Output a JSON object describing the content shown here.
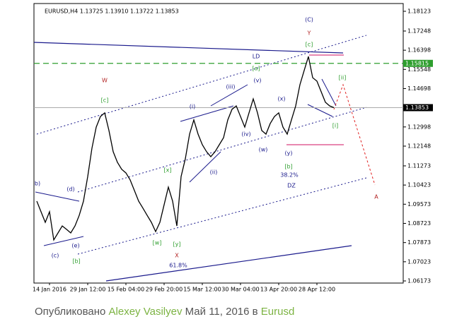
{
  "chart_data": {
    "type": "line",
    "title": "EURUSD,H4  1.13725 1.13910 1.13722 1.13853",
    "categories": [
      null,
      null,
      null,
      "14 Jan 2016",
      null,
      null,
      null,
      null,
      null,
      null,
      null,
      null,
      "29 Jan 12:00",
      null,
      null,
      null,
      null,
      null,
      null,
      null,
      null,
      "15 Feb 04:00",
      null,
      null,
      null,
      null,
      null,
      null,
      null,
      null,
      "29 Feb 20:00",
      null,
      null,
      null,
      null,
      null,
      null,
      null,
      null,
      "15 Mar 12:00",
      null,
      null,
      null,
      null,
      null,
      null,
      null,
      null,
      "30 Mar 04:00",
      null,
      null,
      null,
      null,
      null,
      null,
      null,
      null,
      "13 Apr 20:00",
      null,
      null,
      null,
      null,
      null,
      null,
      null,
      null,
      "28 Apr 12:00",
      null,
      null,
      null,
      null
    ],
    "series": [
      {
        "name": "EURUSD,H4",
        "color": "#000000",
        "values": [
          1.0971,
          1.0924,
          1.0877,
          1.0924,
          1.0799,
          1.083,
          1.0861,
          1.0846,
          1.083,
          1.0861,
          1.0908,
          1.0971,
          1.108,
          1.1206,
          1.1299,
          1.1346,
          1.1362,
          1.1284,
          1.119,
          1.1143,
          1.1112,
          1.1096,
          1.1065,
          1.1018,
          1.0971,
          1.094,
          1.0908,
          1.0877,
          1.0836,
          1.0877,
          1.0955,
          1.1033,
          1.0971,
          1.0861,
          1.108,
          1.1159,
          1.1268,
          1.1331,
          1.1268,
          1.1221,
          1.119,
          1.1168,
          1.119,
          1.1221,
          1.1252,
          1.1331,
          1.1378,
          1.1393,
          1.1346,
          1.1299,
          1.1362,
          1.1424,
          1.1362,
          1.1284,
          1.1268,
          1.1315,
          1.1346,
          1.1362,
          1.1299,
          1.1268,
          1.1331,
          1.1393,
          1.1487,
          1.155,
          1.1612,
          1.1518,
          1.1503,
          1.1456,
          1.1409,
          1.1393,
          1.13853
        ]
      }
    ],
    "ylim": [
      1.06079,
      1.18467
    ],
    "yticks": [
      1.18123,
      1.17248,
      1.16398,
      1.15548,
      1.14698,
      1.12998,
      1.12148,
      1.11273,
      1.10423,
      1.09573,
      1.08723,
      1.07873,
      1.07023,
      1.06173
    ],
    "current_price": 1.13853,
    "level": {
      "value": 1.15815,
      "color": "#2e9e2e"
    },
    "annotations": [
      {
        "text": "(C)",
        "color": "#1a1a8c"
      },
      {
        "text": "Y",
        "color": "#b22222"
      },
      {
        "text": "[c]",
        "color": "#2e9e2e"
      },
      {
        "text": "LD",
        "color": "#1a1a8c"
      },
      {
        "text": "[a]",
        "color": "#2e9e2e"
      },
      {
        "text": "(v)",
        "color": "#1a1a8c"
      },
      {
        "text": "(iii)",
        "color": "#1a1a8c"
      },
      {
        "text": "[ii]",
        "color": "#2e9e2e"
      },
      {
        "text": "W",
        "color": "#b22222"
      },
      {
        "text": "[c]",
        "color": "#2e9e2e"
      },
      {
        "text": "(i)",
        "color": "#1a1a8c"
      },
      {
        "text": "(x)",
        "color": "#1a1a8c"
      },
      {
        "text": "(iv)",
        "color": "#1a1a8c"
      },
      {
        "text": "(w)",
        "color": "#1a1a8c"
      },
      {
        "text": "(y)",
        "color": "#1a1a8c"
      },
      {
        "text": "[i]",
        "color": "#2e9e2e"
      },
      {
        "text": "[b]",
        "color": "#2e9e2e"
      },
      {
        "text": "38.2%",
        "color": "#1a1a8c"
      },
      {
        "text": "DZ",
        "color": "#1a1a8c"
      },
      {
        "text": "(ii)",
        "color": "#1a1a8c"
      },
      {
        "text": "[x]",
        "color": "#2e9e2e"
      },
      {
        "text": "A",
        "color": "#b22222"
      },
      {
        "text": "b)",
        "color": "#1a1a8c"
      },
      {
        "text": "(d)",
        "color": "#1a1a8c"
      },
      {
        "text": "(e)",
        "color": "#1a1a8c"
      },
      {
        "text": "(c)",
        "color": "#1a1a8c"
      },
      {
        "text": "[b]",
        "color": "#2e9e2e"
      },
      {
        "text": "[w]",
        "color": "#2e9e2e"
      },
      {
        "text": "[y]",
        "color": "#2e9e2e"
      },
      {
        "text": "X",
        "color": "#b22222"
      },
      {
        "text": "61.8%",
        "color": "#1a1a8c"
      }
    ]
  },
  "footer": {
    "prefix": "Опубликовано",
    "author": "Alexey Vasilyev",
    "date": "Май 11, 2016",
    "connector": "в",
    "category": "Eurusd"
  }
}
